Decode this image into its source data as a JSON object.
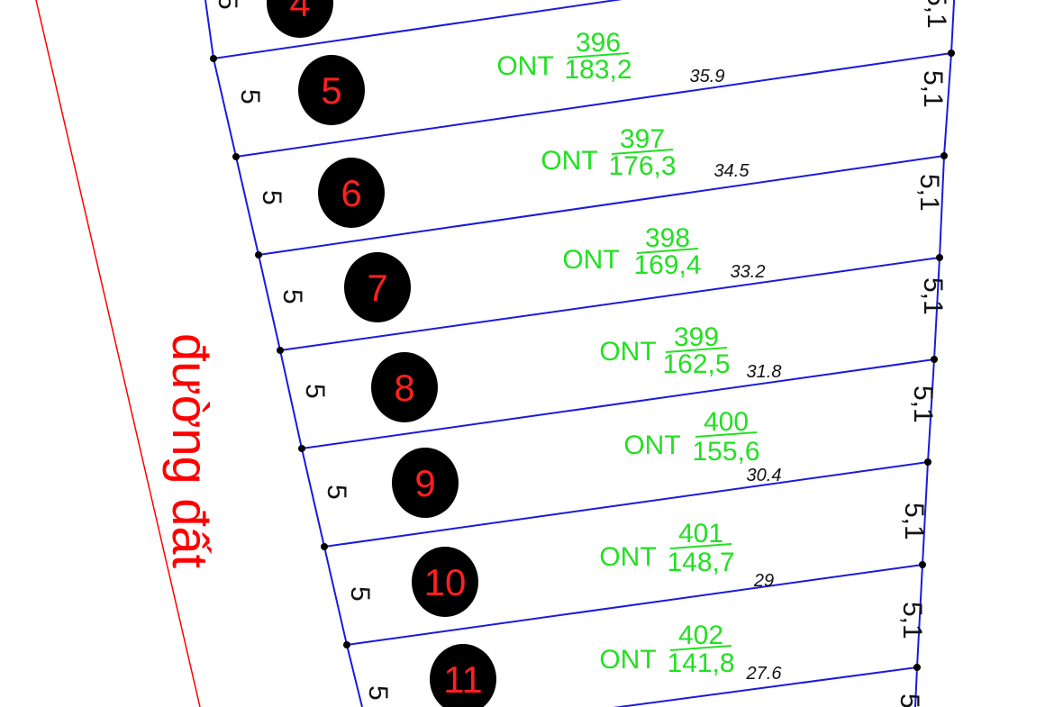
{
  "road_label": "đường đất",
  "colors": {
    "boundary": "#1a1adf",
    "road": "#ff0000",
    "label": "#22e022",
    "plot_number": "#ff2020"
  },
  "left_width_label": "5",
  "right_width_label": "5,1",
  "plots": [
    {
      "number": "4"
    },
    {
      "number": "5",
      "land_type": "ONT",
      "parcel": "396",
      "area": "183,2",
      "length": "35.9"
    },
    {
      "number": "6",
      "land_type": "ONT",
      "parcel": "397",
      "area": "176,3",
      "length": "34.5"
    },
    {
      "number": "7",
      "land_type": "ONT",
      "parcel": "398",
      "area": "169,4",
      "length": "33.2"
    },
    {
      "number": "8",
      "land_type": "ONT",
      "parcel": "399",
      "area": "162,5",
      "length": "31.8"
    },
    {
      "number": "9",
      "land_type": "ONT",
      "parcel": "400",
      "area": "155,6",
      "length": "30.4"
    },
    {
      "number": "10",
      "land_type": "ONT",
      "parcel": "401",
      "area": "148,7",
      "length": "29"
    },
    {
      "number": "11",
      "land_type": "ONT",
      "parcel": "402",
      "area": "141,8",
      "length": "27.6"
    }
  ]
}
